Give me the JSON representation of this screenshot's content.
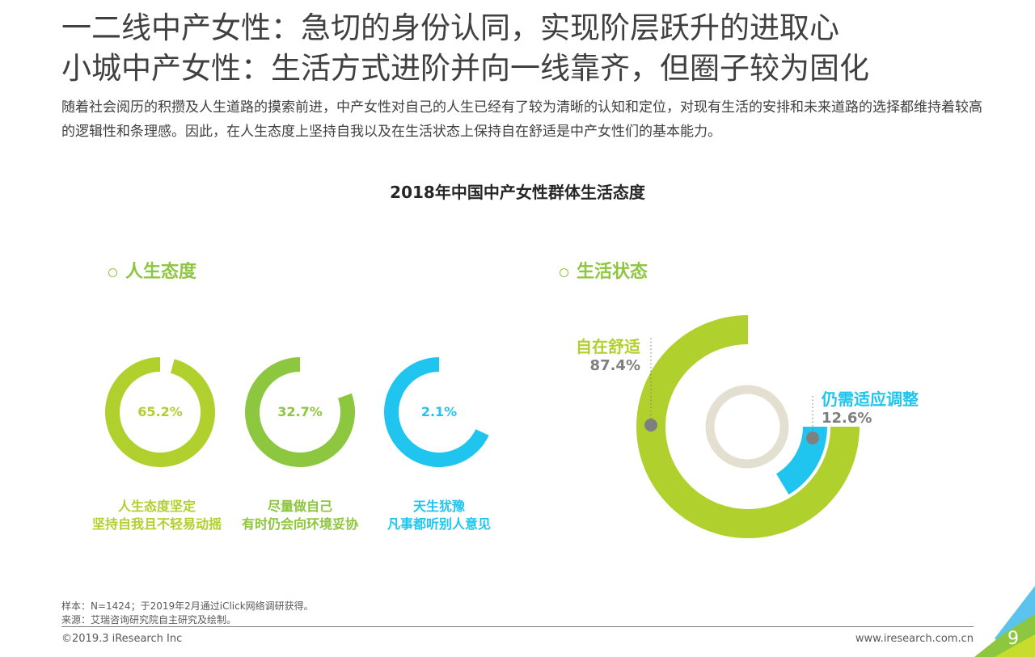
{
  "header": {
    "title_line1": "一二线中产女性：急切的身份认同，实现阶层跃升的进取心",
    "title_line2": "小城中产女性：生活方式进阶并向一线靠齐，但圈子较为固化",
    "description": "随着社会阅历的积攒及人生道路的摸索前进，中产女性对自己的人生已经有了较为清晰的认知和定位，对现有生活的安排和未来道路的选择都维持着较高的逻辑性和条理感。因此，在人生态度上坚持自我以及在生活状态上保持自在舒适是中产女性们的基本能力。"
  },
  "chart_data": [
    {
      "type": "pie",
      "title": "2018年中国中产女性群体生活态度",
      "section": "人生态度",
      "series": [
        {
          "label_line1": "人生态度坚定",
          "label_line2": "坚持自我且不轻易动摇",
          "value": 65.2,
          "display": "65.2%",
          "color": "#b0d02e"
        },
        {
          "label_line1": "尽量做自己",
          "label_line2": "有时仍会向环境妥协",
          "value": 32.7,
          "display": "32.7%",
          "color": "#8dc63f"
        },
        {
          "label_line1": "天生犹豫",
          "label_line2": "凡事都听别人意见",
          "value": 2.1,
          "display": "2.1%",
          "color": "#1fc5ee"
        }
      ]
    },
    {
      "type": "pie",
      "section": "生活状态",
      "series": [
        {
          "label": "自在舒适",
          "value": 87.4,
          "display": "87.4%",
          "color": "#b0d02e"
        },
        {
          "label": "仍需适应调整",
          "value": 12.6,
          "display": "12.6%",
          "color": "#1fc5ee"
        }
      ]
    }
  ],
  "footer": {
    "sample": "样本：N=1424；于2019年2月通过iClick网络调研获得。",
    "source": "来源：艾瑞咨询研究院自主研究及绘制。",
    "copyright": "©2019.3 iResearch Inc",
    "website": "www.iresearch.com.cn",
    "page": "9"
  }
}
